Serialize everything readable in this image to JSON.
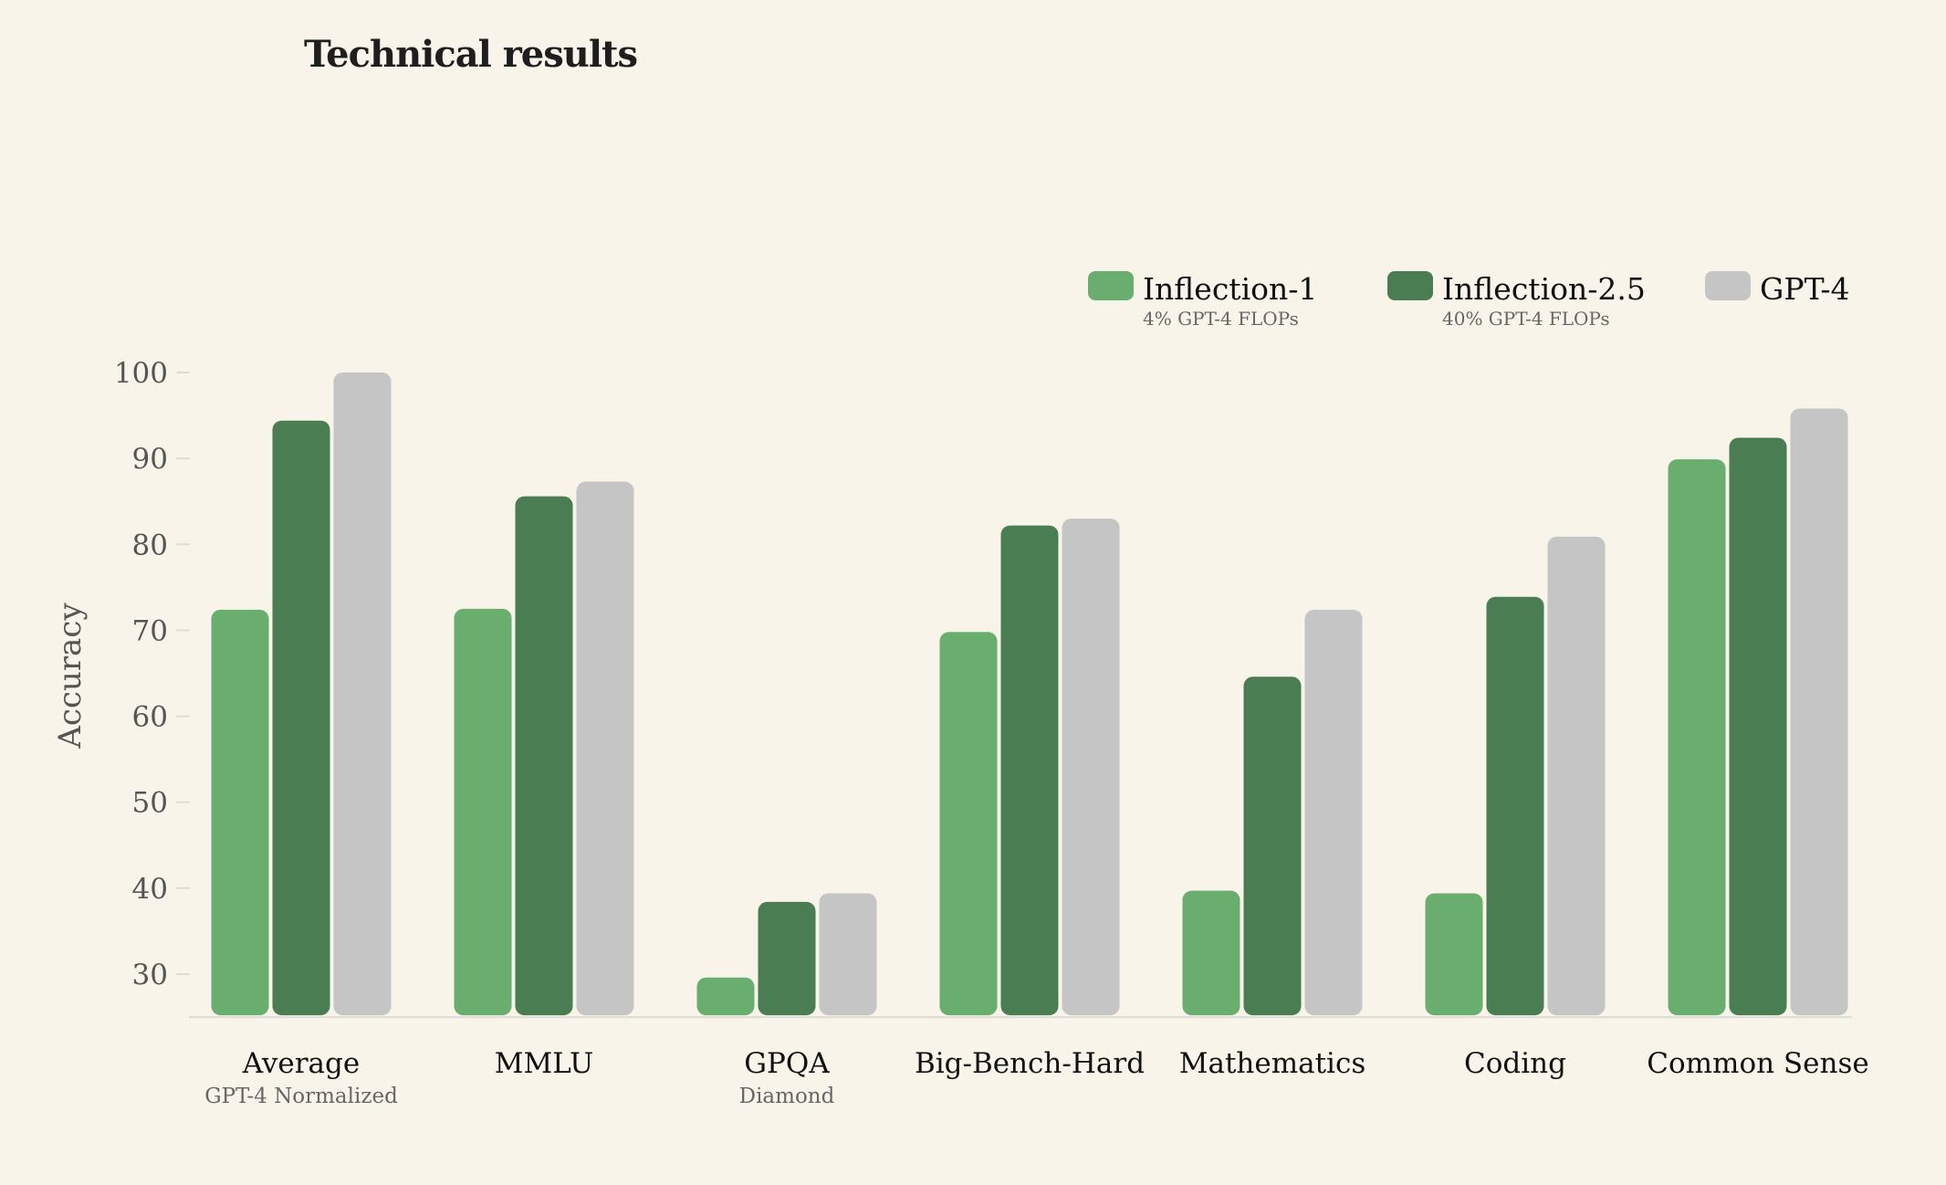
{
  "chart_data": {
    "type": "bar",
    "title": "Technical results",
    "xlabel": "",
    "ylabel": "Accuracy",
    "ylim": [
      25,
      100
    ],
    "yticks": [
      30,
      40,
      50,
      60,
      70,
      80,
      90,
      100
    ],
    "grid": false,
    "legend_position": "top-right",
    "categories": [
      {
        "label": "Average",
        "sublabel": "GPT-4 Normalized"
      },
      {
        "label": "MMLU",
        "sublabel": ""
      },
      {
        "label": "GPQA",
        "sublabel": "Diamond"
      },
      {
        "label": "Big-Bench-Hard",
        "sublabel": ""
      },
      {
        "label": "Mathematics",
        "sublabel": ""
      },
      {
        "label": "Coding",
        "sublabel": ""
      },
      {
        "label": "Common Sense",
        "sublabel": ""
      }
    ],
    "series": [
      {
        "name": "Inflection-1",
        "note": "4% GPT-4 FLOPs",
        "color": "#69ae6e",
        "values": [
          72.4,
          72.5,
          29.6,
          69.8,
          39.7,
          39.4,
          89.9
        ]
      },
      {
        "name": "Inflection-2.5",
        "note": "40% GPT-4 FLOPs",
        "color": "#4b7d53",
        "values": [
          94.4,
          85.6,
          38.4,
          82.2,
          64.6,
          73.9,
          92.4
        ]
      },
      {
        "name": "GPT-4",
        "note": "",
        "color": "#c5c5c5",
        "values": [
          100,
          87.3,
          39.4,
          83.0,
          72.4,
          80.9,
          95.8
        ]
      }
    ]
  }
}
